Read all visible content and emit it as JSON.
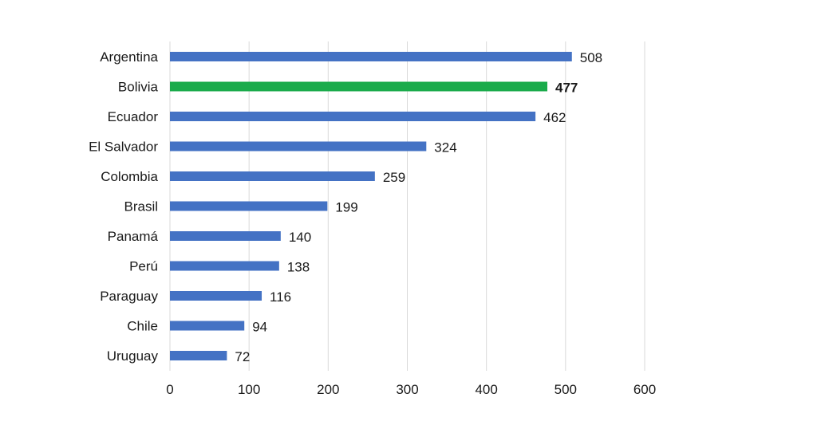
{
  "chart_data": {
    "type": "bar",
    "orientation": "horizontal",
    "categories": [
      "Argentina",
      "Bolivia",
      "Ecuador",
      "El Salvador",
      "Colombia",
      "Brasil",
      "Panamá",
      "Perú",
      "Paraguay",
      "Chile",
      "Uruguay"
    ],
    "values": [
      508,
      477,
      462,
      324,
      259,
      199,
      140,
      138,
      116,
      94,
      72
    ],
    "value_labels": [
      "508",
      "477",
      "462",
      "324",
      "259",
      "199",
      "140",
      "138",
      "116",
      "94",
      "72"
    ],
    "highlight_index": 1,
    "xlim": [
      0,
      600
    ],
    "xticks": [
      0,
      100,
      200,
      300,
      400,
      500,
      600
    ],
    "xtick_labels": [
      "0",
      "100",
      "200",
      "300",
      "400",
      "500",
      "600"
    ],
    "title": "",
    "xlabel": "",
    "ylabel": "",
    "grid": "vertical",
    "legend": "none",
    "colors": {
      "bar": "#4472c4",
      "highlight": "#1aab4b",
      "grid": "#d9d9d9",
      "text": "#1a1a1a"
    }
  }
}
